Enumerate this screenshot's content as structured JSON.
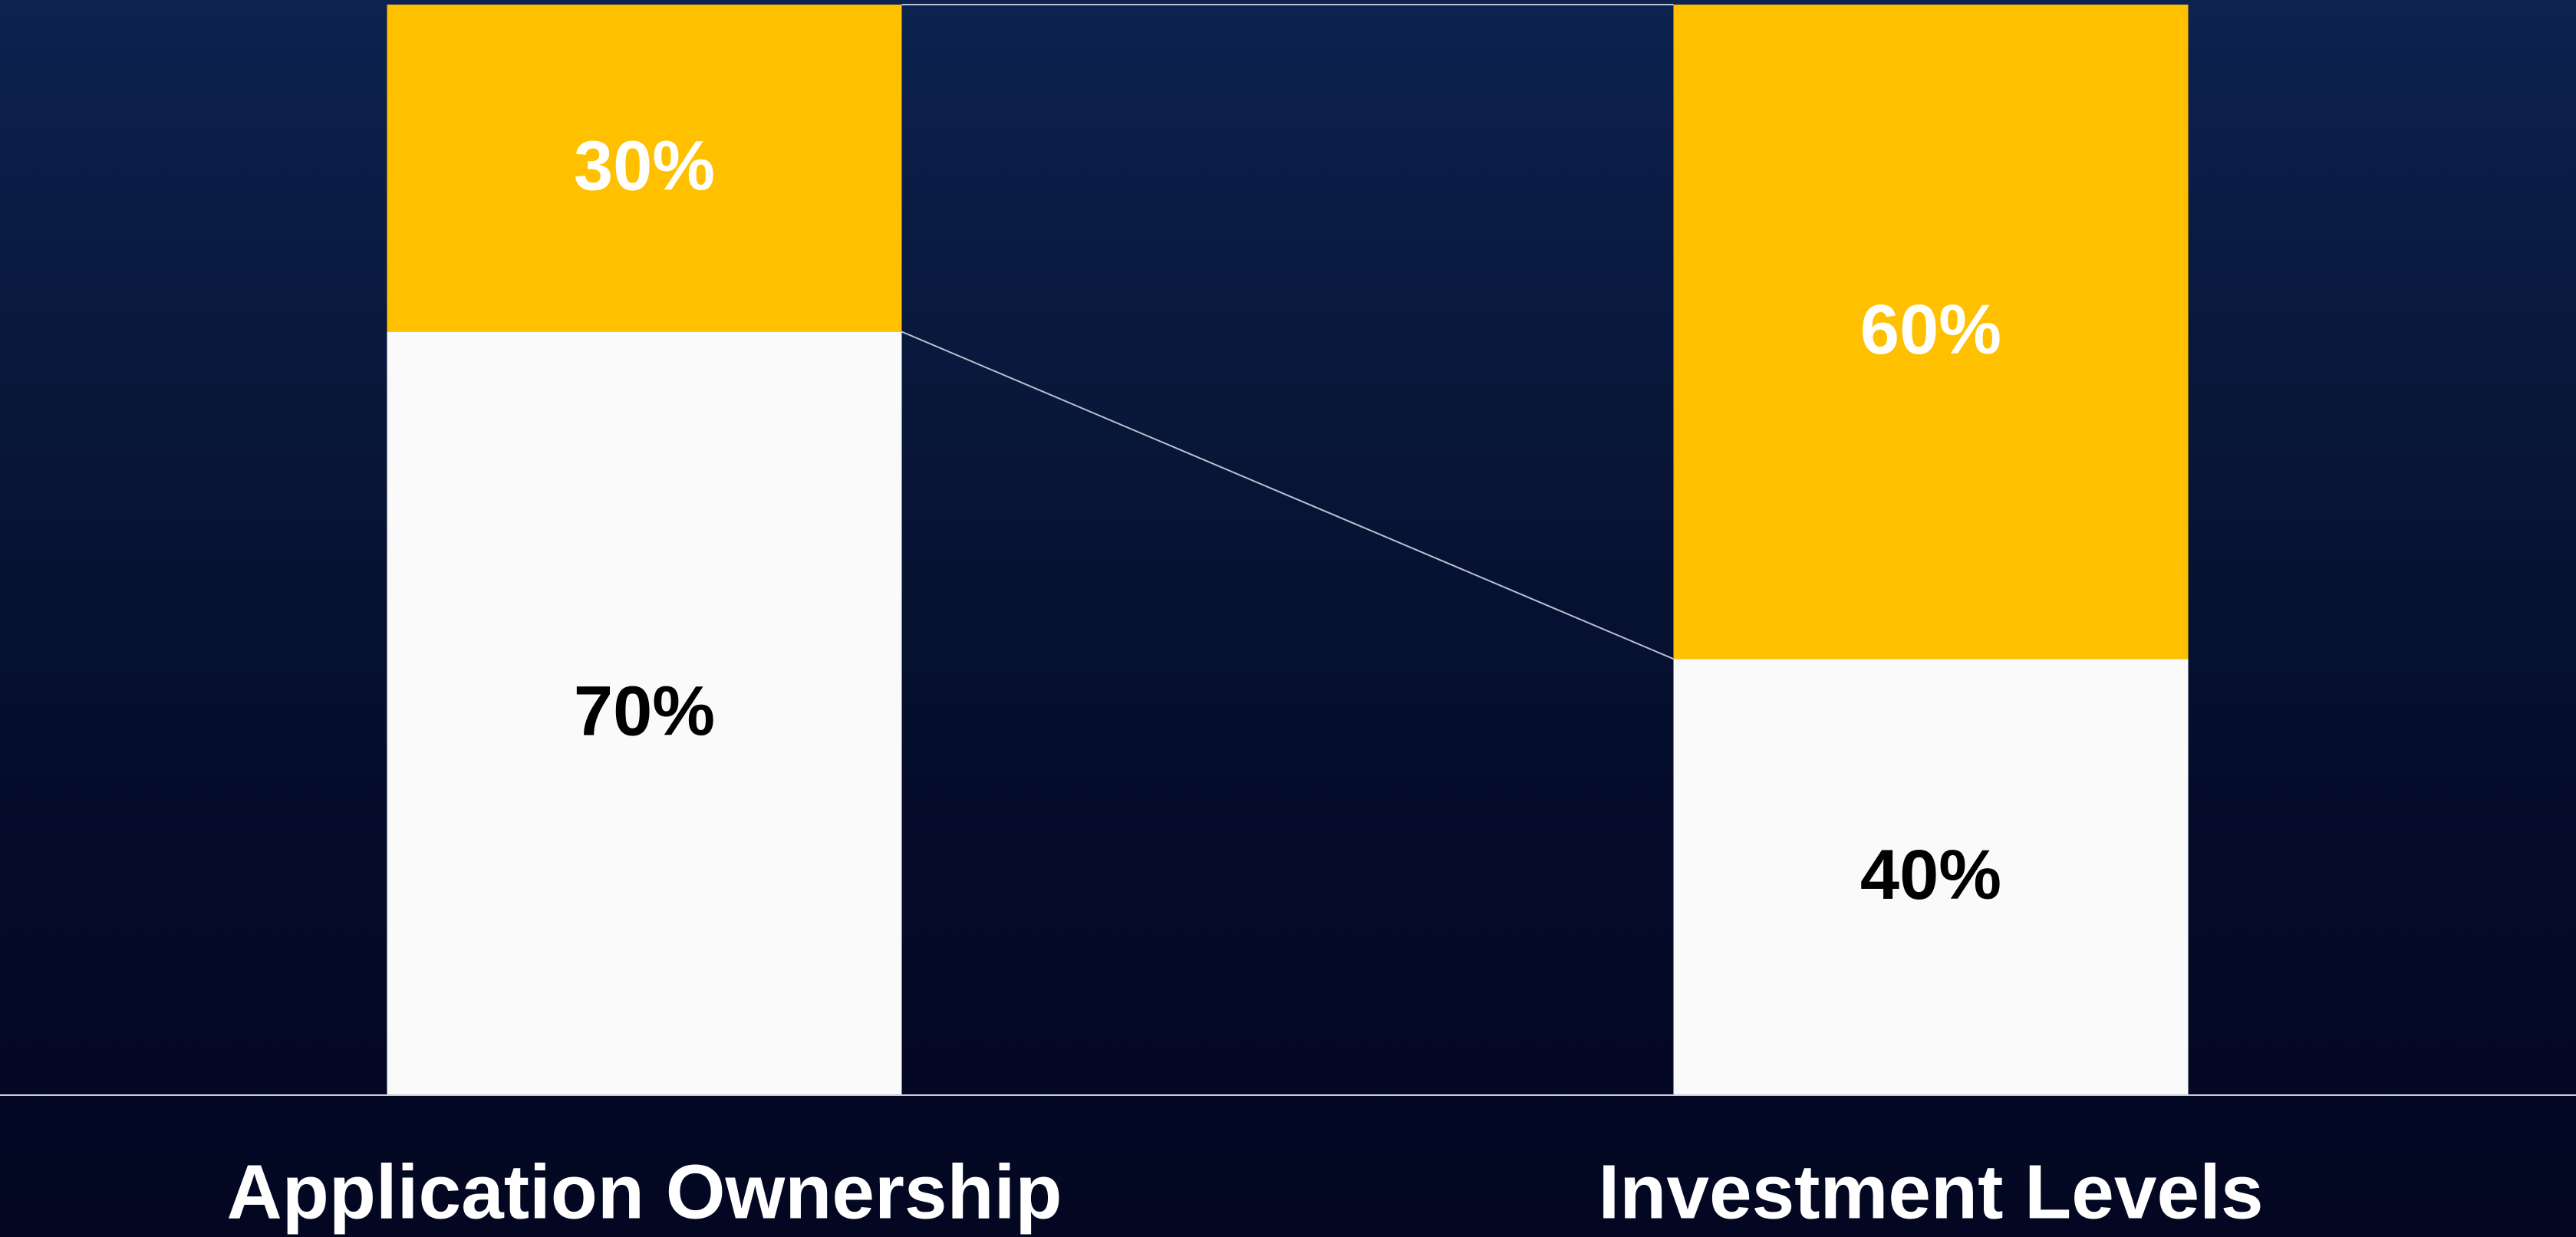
{
  "chart_data": {
    "type": "stacked-bar",
    "categories": [
      "Application Ownership",
      "Investment Levels"
    ],
    "series": [
      {
        "color": "#fafafa",
        "label_color": "#000000",
        "values": [
          70,
          40
        ],
        "value_labels": [
          "70%",
          "40%"
        ]
      },
      {
        "color": "#ffc000",
        "label_color": "#ffffff",
        "values": [
          30,
          60
        ],
        "value_labels": [
          "30%",
          "60%"
        ]
      }
    ],
    "ylim": [
      0,
      100
    ]
  }
}
